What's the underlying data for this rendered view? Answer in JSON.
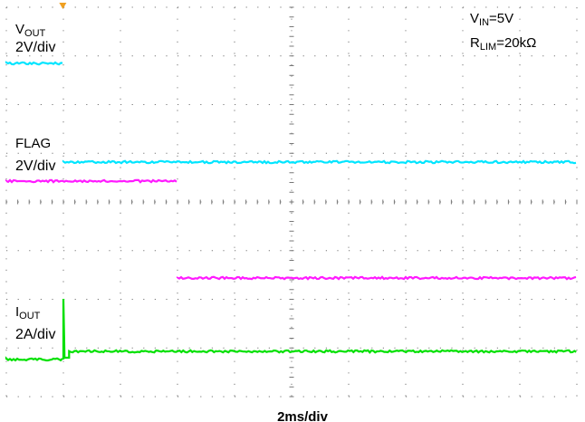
{
  "chart_data": {
    "type": "line",
    "subtype": "oscilloscope",
    "timebase": "2ms/div",
    "grid": true,
    "annotation": {
      "vin": "V",
      "vin_sub": "IN",
      "vin_val": "=5V",
      "rlim": "R",
      "rlim_sub": "LIM",
      "rlim_val": "=20kΩ"
    },
    "channels": [
      {
        "label": "V",
        "label_sub": "OUT",
        "label_plain": "",
        "scale": "2V/div",
        "color": "#00e5ff",
        "level": [
          1.22,
          1.22
        ],
        "transition_div": 1.0,
        "note": "trace ends at transition"
      },
      {
        "label": "",
        "label_sub": "",
        "label_plain": "FLAG",
        "scale": "2V/div",
        "color": "#00e5ff",
        "level": [
          1.22,
          1.22
        ],
        "transition_div": 1.0
      },
      {
        "label": "",
        "label_sub": "",
        "label_plain": "",
        "scale": "",
        "color": "#ff1aff",
        "level": [
          1.22,
          1.22
        ],
        "transition_div": 3.0
      },
      {
        "label": "I",
        "label_sub": "OUT",
        "label_plain": "",
        "scale": "2A/div",
        "color": "#00e000",
        "level": [
          1.22,
          1.22
        ],
        "transition_div": 1.1
      }
    ]
  }
}
